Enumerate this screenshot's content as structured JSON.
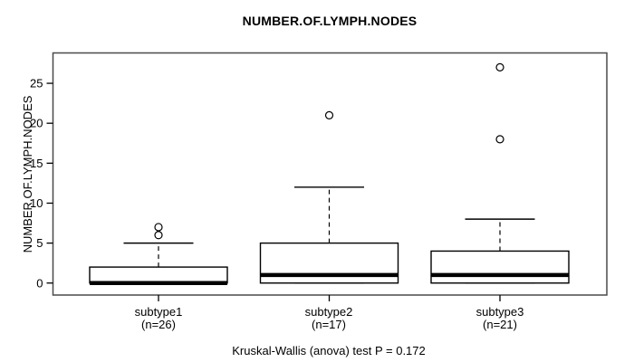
{
  "title": "NUMBER.OF.LYMPH.NODES",
  "caption": "Kruskal-Wallis (anova) test P = 0.172",
  "colors": {
    "background": "#ffffff",
    "box_fill": "#ffffff",
    "line": "#000000",
    "plot_border": "#4a4a4a"
  },
  "chart_data": {
    "type": "boxplot",
    "title": "NUMBER.OF.LYMPH.NODES",
    "ylabel": "NUMBER.OF.LYMPH.NODES",
    "xlabel": "",
    "yticks": [
      0,
      5,
      10,
      15,
      20,
      25
    ],
    "ylim": [
      -1.5,
      28.8
    ],
    "grid": false,
    "legend": "none",
    "groups": [
      {
        "label": "subtype1",
        "n_label": "(n=26)",
        "whisker_low": 0,
        "q1": 0,
        "median": 0,
        "q3": 2,
        "whisker_high": 5,
        "outliers": [
          6,
          7
        ]
      },
      {
        "label": "subtype2",
        "n_label": "(n=17)",
        "whisker_low": 0,
        "q1": 0,
        "median": 1,
        "q3": 5,
        "whisker_high": 12,
        "outliers": [
          21
        ]
      },
      {
        "label": "subtype3",
        "n_label": "(n=21)",
        "whisker_low": 0,
        "q1": 0,
        "median": 1,
        "q3": 4,
        "whisker_high": 8,
        "outliers": [
          18,
          27
        ]
      }
    ],
    "stat_test_caption": "Kruskal-Wallis (anova) test P = 0.172"
  }
}
